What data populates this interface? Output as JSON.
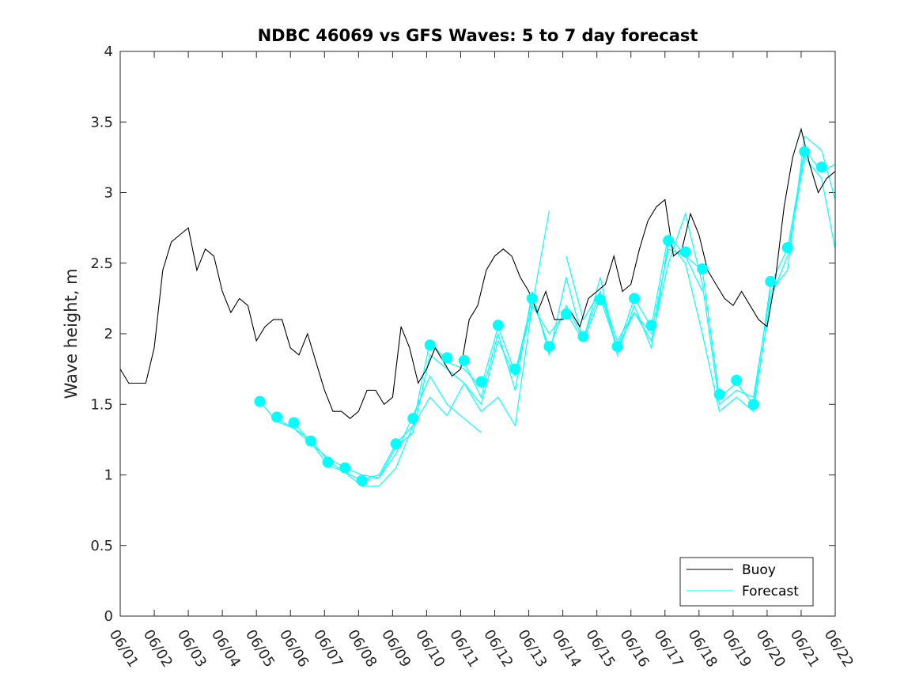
{
  "chart_data": {
    "type": "line",
    "title": "NDBC 46069 vs GFS Waves: 5 to 7 day forecast",
    "xlabel": "",
    "ylabel": "Wave height, m",
    "xlim": [
      "06/01",
      "06/22"
    ],
    "ylim": [
      0,
      4
    ],
    "yticks": [
      0,
      0.5,
      1,
      1.5,
      2,
      2.5,
      3,
      3.5,
      4
    ],
    "xtick_labels": [
      "06/01",
      "06/02",
      "06/03",
      "06/04",
      "06/05",
      "06/06",
      "06/07",
      "06/08",
      "06/09",
      "06/10",
      "06/11",
      "06/12",
      "06/13",
      "06/14",
      "06/15",
      "06/16",
      "06/17",
      "06/18",
      "06/19",
      "06/20",
      "06/21",
      "06/22"
    ],
    "grid": false,
    "legend_position": "bottom-right",
    "colors": {
      "buoy": "#000000",
      "forecast": "#00ffff"
    },
    "series": [
      {
        "name": "Buoy",
        "style": "line",
        "color": "#000000",
        "x": [
          1.0,
          1.25,
          1.5,
          1.75,
          2.0,
          2.25,
          2.5,
          2.75,
          3.0,
          3.25,
          3.5,
          3.75,
          4.0,
          4.25,
          4.5,
          4.75,
          5.0,
          5.25,
          5.5,
          5.75,
          6.0,
          6.25,
          6.5,
          6.75,
          7.0,
          7.25,
          7.5,
          7.75,
          8.0,
          8.25,
          8.5,
          8.75,
          9.0,
          9.25,
          9.5,
          9.75,
          10.0,
          10.25,
          10.5,
          10.75,
          11.0,
          11.25,
          11.5,
          11.75,
          12.0,
          12.25,
          12.5,
          12.75,
          13.0,
          13.25,
          13.5,
          13.75,
          14.0,
          14.25,
          14.5,
          14.75,
          15.0,
          15.25,
          15.5,
          15.75,
          16.0,
          16.25,
          16.5,
          16.75,
          17.0,
          17.25,
          17.5,
          17.75,
          18.0,
          18.25,
          18.5,
          18.75,
          19.0,
          19.25,
          19.5,
          19.75,
          20.0,
          20.25,
          20.5,
          20.75,
          21.0,
          21.25,
          21.5,
          21.75,
          22.0
        ],
        "y": [
          1.75,
          1.65,
          1.65,
          1.65,
          1.9,
          2.45,
          2.65,
          2.7,
          2.75,
          2.45,
          2.6,
          2.55,
          2.3,
          2.15,
          2.25,
          2.2,
          1.95,
          2.05,
          2.1,
          2.1,
          1.9,
          1.85,
          2.0,
          1.8,
          1.6,
          1.45,
          1.45,
          1.4,
          1.45,
          1.6,
          1.6,
          1.5,
          1.55,
          2.05,
          1.9,
          1.65,
          1.75,
          1.9,
          1.8,
          1.7,
          1.75,
          2.1,
          2.2,
          2.45,
          2.55,
          2.6,
          2.55,
          2.4,
          2.3,
          2.15,
          2.3,
          2.1,
          2.1,
          2.15,
          2.05,
          2.25,
          2.3,
          2.35,
          2.55,
          2.3,
          2.35,
          2.6,
          2.8,
          2.9,
          2.95,
          2.55,
          2.6,
          2.85,
          2.7,
          2.45,
          2.35,
          2.25,
          2.2,
          2.3,
          2.2,
          2.1,
          2.05,
          2.4,
          2.9,
          3.25,
          3.45,
          3.2,
          3.0,
          3.1,
          3.15
        ]
      },
      {
        "name": "Forecast",
        "style": "line",
        "color": "#00ffff",
        "segments": [
          {
            "x": [
              5.1,
              5.6,
              6.1,
              6.6,
              7.1,
              7.6,
              8.1,
              8.6,
              9.1,
              9.6,
              10.1,
              10.6,
              11.1,
              11.6
            ],
            "y": [
              1.52,
              1.38,
              1.33,
              1.22,
              1.12,
              1.05,
              1.0,
              0.98,
              1.15,
              1.42,
              1.7,
              1.5,
              1.4,
              1.3
            ]
          },
          {
            "x": [
              5.6,
              6.1,
              6.6,
              7.1,
              7.6,
              8.1,
              8.6,
              9.1,
              9.6,
              10.1,
              10.6,
              11.1,
              11.6,
              12.1,
              12.6,
              13.1,
              13.6
            ],
            "y": [
              1.4,
              1.33,
              1.25,
              1.1,
              1.02,
              0.92,
              0.92,
              1.05,
              1.35,
              1.55,
              1.42,
              1.65,
              1.45,
              1.55,
              1.35,
              2.2,
              2.87
            ]
          },
          {
            "x": [
              6.1,
              6.6,
              7.1,
              7.6,
              8.1,
              8.6,
              9.1,
              9.6,
              10.1,
              10.6,
              11.1,
              11.6,
              12.1,
              12.6,
              13.1,
              13.6,
              14.1,
              14.6,
              15.1,
              15.6,
              16.1,
              16.6,
              17.1,
              17.6,
              18.1
            ],
            "y": [
              1.37,
              1.23,
              1.07,
              1.02,
              0.96,
              0.98,
              1.2,
              1.3,
              1.85,
              1.75,
              1.65,
              1.5,
              1.95,
              1.7,
              2.2,
              2.0,
              2.15,
              1.95,
              2.25,
              1.9,
              2.15,
              2.0,
              2.6,
              2.55,
              2.3
            ]
          },
          {
            "x": [
              8.1,
              8.6,
              9.1,
              9.6,
              10.1,
              10.6,
              11.1,
              11.6,
              12.1,
              12.6,
              13.1,
              13.6,
              14.1,
              14.6,
              15.1,
              15.6,
              16.1,
              16.6,
              17.1,
              17.6,
              18.1,
              18.6,
              19.1,
              19.6,
              20.1,
              20.6,
              21.1,
              21.6,
              22.0
            ],
            "y": [
              0.97,
              1.0,
              1.22,
              1.35,
              1.95,
              1.8,
              1.75,
              1.62,
              2.05,
              1.72,
              2.25,
              1.9,
              2.2,
              1.97,
              2.3,
              1.9,
              2.25,
              2.05,
              2.7,
              2.55,
              2.45,
              1.55,
              1.65,
              1.5,
              2.35,
              2.6,
              3.3,
              3.15,
              3.2
            ]
          },
          {
            "x": [
              11.1,
              11.6,
              12.1,
              12.6,
              13.1,
              13.6,
              14.1,
              14.6,
              15.1,
              15.6,
              16.1,
              16.6,
              17.1,
              17.6,
              18.1,
              18.6,
              19.1,
              19.6,
              20.1,
              20.6,
              21.1,
              21.6,
              22.0
            ],
            "y": [
              1.8,
              1.55,
              2.0,
              1.6,
              2.3,
              1.85,
              2.4,
              1.95,
              2.4,
              1.85,
              2.2,
              1.9,
              2.65,
              2.5,
              2.0,
              1.45,
              1.55,
              1.45,
              2.25,
              2.55,
              3.25,
              3.1,
              2.6
            ]
          },
          {
            "x": [
              14.1,
              14.6,
              15.1,
              15.6,
              16.1,
              16.6,
              17.1,
              17.6,
              18.1,
              18.6,
              19.1,
              19.6,
              20.1,
              20.6,
              21.1,
              21.6,
              22.0
            ],
            "y": [
              2.55,
              2.1,
              2.3,
              1.95,
              2.15,
              1.95,
              2.5,
              2.85,
              2.35,
              1.5,
              1.6,
              1.55,
              2.3,
              2.45,
              3.4,
              3.3,
              2.95
            ]
          }
        ],
        "markers": {
          "x": [
            5.1,
            5.6,
            6.1,
            6.6,
            7.1,
            7.6,
            8.1,
            9.1,
            9.6,
            10.1,
            10.6,
            11.1,
            11.6,
            12.1,
            12.6,
            13.1,
            13.6,
            14.1,
            14.6,
            15.1,
            15.6,
            16.1,
            16.6,
            17.1,
            17.6,
            18.1,
            18.6,
            19.1,
            19.6,
            20.1,
            20.6,
            21.1,
            21.6
          ],
          "y": [
            1.52,
            1.41,
            1.37,
            1.24,
            1.09,
            1.05,
            0.96,
            1.22,
            1.4,
            1.92,
            1.83,
            1.81,
            1.66,
            2.06,
            1.75,
            2.25,
            1.91,
            2.14,
            1.98,
            2.24,
            1.91,
            2.25,
            2.06,
            2.66,
            2.58,
            2.46,
            1.57,
            1.67,
            1.5,
            2.37,
            2.61,
            3.29,
            3.18
          ]
        }
      }
    ]
  }
}
